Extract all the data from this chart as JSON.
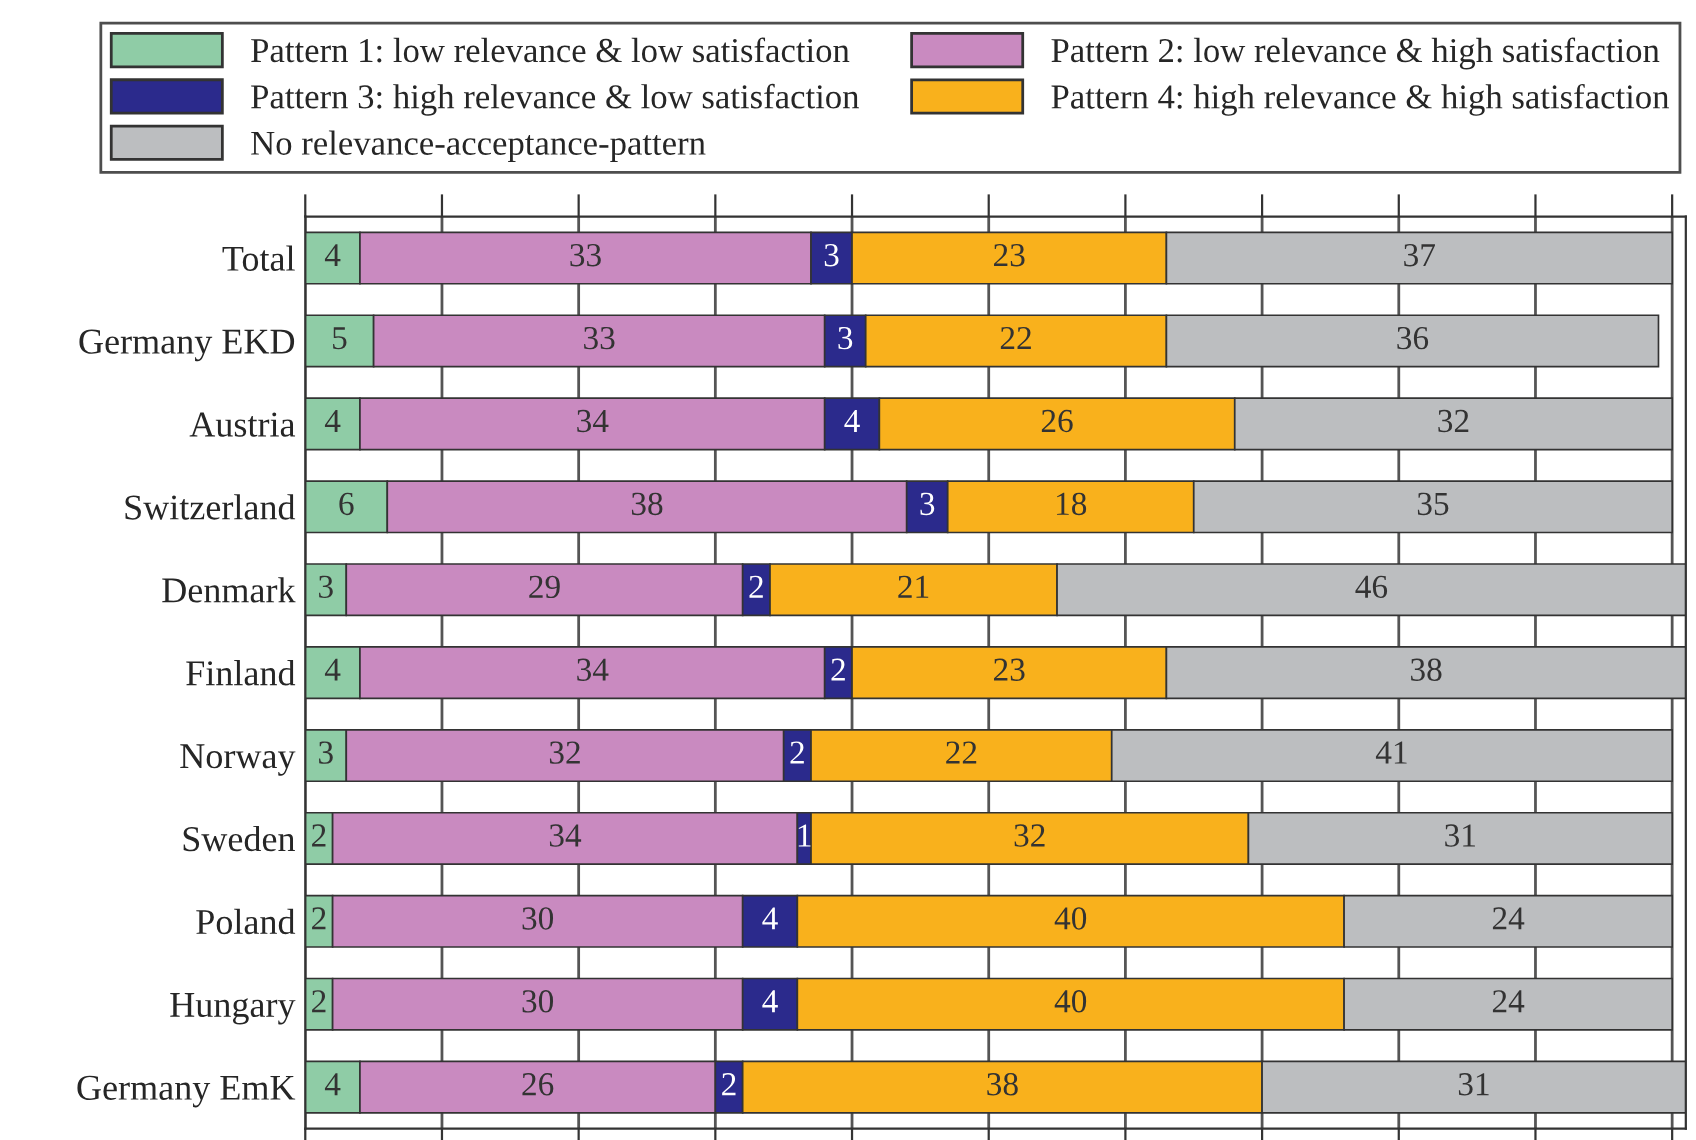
{
  "chart_data": {
    "type": "bar",
    "orientation": "horizontal",
    "stacked": true,
    "data_labels": true,
    "grid": "x",
    "legend": "top",
    "tick_labels": "y",
    "categories": [
      "Total",
      "Germany EKD",
      "Austria",
      "Switzerland",
      "Denmark",
      "Finland",
      "Norway",
      "Sweden",
      "Poland",
      "Hungary",
      "Germany EmK"
    ],
    "xlim": [
      0,
      101
    ],
    "xticks": [
      {
        "value": 0,
        "label": null
      },
      {
        "value": 10,
        "label": null
      },
      {
        "value": 20,
        "label": null
      },
      {
        "value": 30,
        "label": null
      },
      {
        "value": 40,
        "label": null
      },
      {
        "value": 50,
        "label": null
      },
      {
        "value": 60,
        "label": null
      },
      {
        "value": 70,
        "label": null
      },
      {
        "value": 80,
        "label": null
      },
      {
        "value": 90,
        "label": null
      },
      {
        "value": 100,
        "label": null
      }
    ],
    "series": [
      {
        "name": "Pattern 1: low relevance & low satisfaction",
        "color": "#8fcca6",
        "values": [
          4,
          5,
          4,
          6,
          3,
          4,
          3,
          2,
          2,
          2,
          4
        ]
      },
      {
        "name": "Pattern 2: low relevance & high satisfaction",
        "color": "#c98ac0",
        "values": [
          33,
          33,
          34,
          38,
          29,
          34,
          32,
          34,
          30,
          30,
          26
        ]
      },
      {
        "name": "Pattern 3: high relevance & low satisfaction",
        "color": "#2b2a8c",
        "values": [
          3,
          3,
          4,
          3,
          2,
          2,
          2,
          1,
          4,
          4,
          2
        ]
      },
      {
        "name": "Pattern 4: high relevance & high satisfaction",
        "color": "#f9b11c",
        "values": [
          23,
          22,
          26,
          18,
          21,
          23,
          22,
          32,
          40,
          40,
          38
        ]
      },
      {
        "name": "No relevance-acceptance-pattern",
        "color": "#bcbec0",
        "values": [
          37,
          36,
          32,
          35,
          46,
          38,
          41,
          31,
          24,
          24,
          31
        ]
      }
    ]
  }
}
